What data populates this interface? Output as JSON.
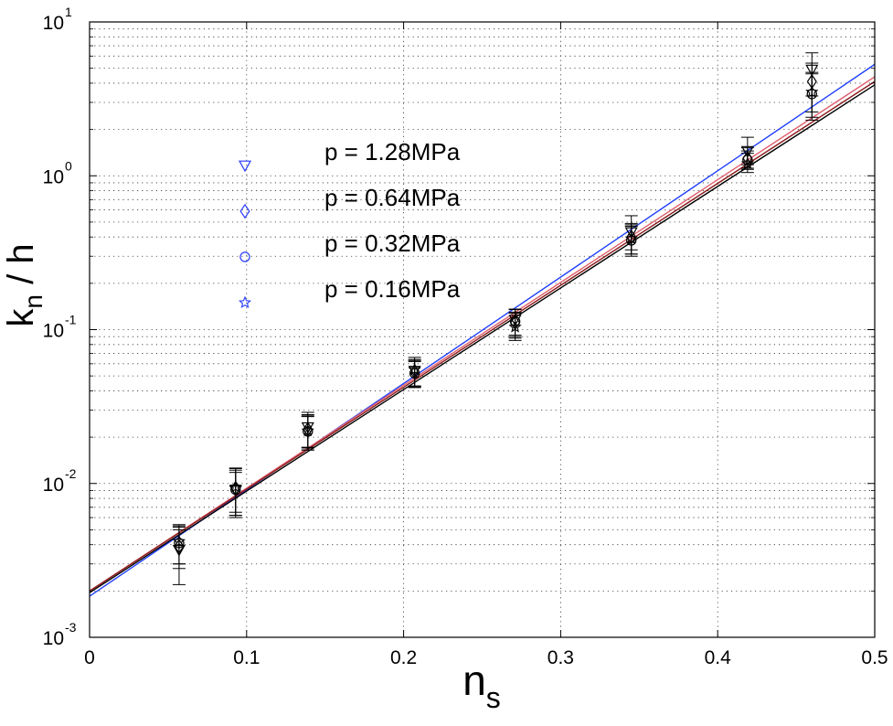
{
  "chart_data": {
    "type": "scatter",
    "title": "",
    "xlabel": "n",
    "xlabel_sub": "s",
    "ylabel": "k",
    "ylabel_sub": "n",
    "ylabel_suffix": " / h",
    "xlim": [
      0,
      0.5
    ],
    "ylim": [
      0.001,
      10
    ],
    "yscale": "log",
    "grid": true,
    "x_ticks": [
      "0",
      "0.1",
      "0.2",
      "0.3",
      "0.4",
      "0.5"
    ],
    "y_ticks": [
      {
        "base": "10",
        "exp": "-3"
      },
      {
        "base": "10",
        "exp": "-2"
      },
      {
        "base": "10",
        "exp": "-1"
      },
      {
        "base": "10",
        "exp": "0"
      },
      {
        "base": "10",
        "exp": "1"
      }
    ],
    "legend_placement": "upper-left",
    "series": [
      {
        "name": "p = 1.28MPa",
        "marker": "triangle-down",
        "fit_color": "#1f3fff",
        "x": [
          0.057,
          0.093,
          0.139,
          0.207,
          0.271,
          0.345,
          0.419,
          0.46
        ],
        "y": [
          0.0037,
          0.009,
          0.0232,
          0.054,
          0.116,
          0.43,
          1.45,
          4.9
        ],
        "err_low": [
          0.0022,
          0.0062,
          0.0172,
          0.0425,
          0.092,
          0.33,
          1.18,
          3.3
        ],
        "err_high": [
          0.0053,
          0.0126,
          0.029,
          0.066,
          0.136,
          0.55,
          1.78,
          6.3
        ],
        "fit": [
          [
            0,
            0.00185
          ],
          [
            0.5,
            5.3
          ]
        ]
      },
      {
        "name": "p = 0.64MPa",
        "marker": "diamond",
        "fit_color": "#e0606e",
        "x": [
          0.057,
          0.093,
          0.139,
          0.207,
          0.271,
          0.345,
          0.419,
          0.46
        ],
        "y": [
          0.0039,
          0.0093,
          0.0225,
          0.053,
          0.111,
          0.4,
          1.3,
          4.1
        ],
        "err_low": [
          0.0028,
          0.0065,
          0.017,
          0.043,
          0.09,
          0.31,
          1.1,
          2.6
        ],
        "err_high": [
          0.005,
          0.0118,
          0.028,
          0.063,
          0.13,
          0.49,
          1.52,
          5.4
        ],
        "fit": [
          [
            0,
            0.002
          ],
          [
            0.5,
            4.4
          ]
        ]
      },
      {
        "name": "p = 0.32MPa",
        "marker": "circle",
        "fit_color": "#8b1a1a",
        "x": [
          0.057,
          0.093,
          0.139,
          0.207,
          0.271,
          0.345,
          0.419,
          0.46
        ],
        "y": [
          0.0041,
          0.0091,
          0.0218,
          0.052,
          0.113,
          0.38,
          1.27,
          3.4
        ],
        "err_low": [
          0.003,
          0.006,
          0.0165,
          0.042,
          0.088,
          0.3,
          1.12,
          2.3
        ],
        "err_high": [
          0.0052,
          0.0122,
          0.0275,
          0.062,
          0.135,
          0.47,
          1.45,
          4.6
        ],
        "fit": [
          [
            0,
            0.002
          ],
          [
            0.5,
            4.1
          ]
        ]
      },
      {
        "name": "p = 0.16MPa",
        "marker": "star",
        "fit_color": "#000000",
        "x": [
          0.057,
          0.093,
          0.139,
          0.207,
          0.271,
          0.345,
          0.419,
          0.46
        ],
        "y": [
          0.0042,
          0.0095,
          0.022,
          0.055,
          0.104,
          0.39,
          1.2,
          3.5
        ],
        "err_low": [
          0.003,
          0.0062,
          0.0165,
          0.043,
          0.085,
          0.31,
          1.05,
          2.4
        ],
        "err_high": [
          0.0054,
          0.0125,
          0.0272,
          0.064,
          0.128,
          0.48,
          1.4,
          4.7
        ],
        "fit": [
          [
            0,
            0.00195
          ],
          [
            0.5,
            3.9
          ]
        ]
      }
    ]
  }
}
